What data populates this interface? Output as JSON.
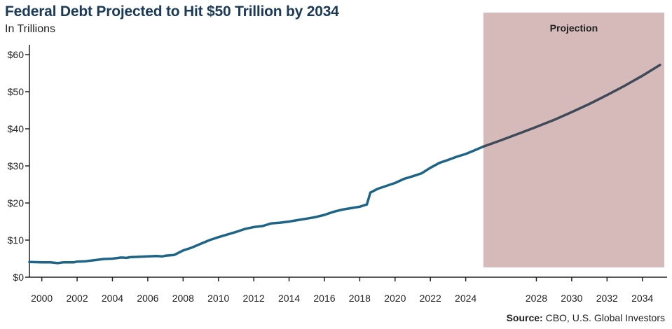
{
  "header": {
    "title": "Federal Debt Projected to Hit $50 Trillion by 2034",
    "subtitle": "In Trillions"
  },
  "footer": {
    "source_label": "Source:",
    "source_text": " CBO, U.S. Global Investors"
  },
  "colors": {
    "historical_line": "#1d6486",
    "projection_line": "#3f4a58",
    "projection_band": "#d6b9b9",
    "axis": "#222222",
    "title": "#1b3a57"
  },
  "chart_data": {
    "type": "line",
    "title": "Federal Debt Projected to Hit $50 Trillion by 2034",
    "subtitle": "In Trillions",
    "xlim": [
      1999.3,
      2035.4
    ],
    "ylim": [
      0,
      60
    ],
    "x_ticks": [
      2000,
      2002,
      2004,
      2006,
      2008,
      2010,
      2012,
      2014,
      2016,
      2018,
      2020,
      2022,
      2024,
      2028,
      2030,
      2032,
      2034
    ],
    "x_tick_labels": [
      "2000",
      "2002",
      "2004",
      "2006",
      "2008",
      "2010",
      "2012",
      "2014",
      "2016",
      "2018",
      "2020",
      "2022",
      "2024",
      "2028",
      "2030",
      "2032",
      "2034"
    ],
    "y_ticks": [
      0,
      10,
      20,
      30,
      40,
      50,
      60
    ],
    "y_tick_labels": [
      "$0",
      "$10",
      "$20",
      "$30",
      "$40",
      "$50",
      "$60"
    ],
    "grid": false,
    "projection_band": {
      "label": "Projection",
      "start": 2025.0,
      "end": 2035.4
    },
    "series": [
      {
        "segment": "historical",
        "points": [
          [
            1999.3,
            4.1
          ],
          [
            2000.0,
            4.0
          ],
          [
            2000.5,
            4.0
          ],
          [
            2000.9,
            3.8
          ],
          [
            2001.2,
            4.0
          ],
          [
            2001.8,
            4.0
          ],
          [
            2002.0,
            4.2
          ],
          [
            2002.5,
            4.3
          ],
          [
            2003.0,
            4.6
          ],
          [
            2003.5,
            4.9
          ],
          [
            2004.0,
            5.0
          ],
          [
            2004.5,
            5.3
          ],
          [
            2004.8,
            5.2
          ],
          [
            2005.0,
            5.4
          ],
          [
            2005.5,
            5.5
          ],
          [
            2006.0,
            5.6
          ],
          [
            2006.5,
            5.7
          ],
          [
            2006.8,
            5.6
          ],
          [
            2007.0,
            5.8
          ],
          [
            2007.5,
            6.0
          ],
          [
            2008.0,
            7.2
          ],
          [
            2008.5,
            8.0
          ],
          [
            2009.0,
            9.0
          ],
          [
            2009.5,
            10.0
          ],
          [
            2010.0,
            10.8
          ],
          [
            2010.5,
            11.5
          ],
          [
            2011.0,
            12.2
          ],
          [
            2011.5,
            13.0
          ],
          [
            2012.0,
            13.5
          ],
          [
            2012.5,
            13.8
          ],
          [
            2013.0,
            14.5
          ],
          [
            2013.5,
            14.7
          ],
          [
            2014.0,
            15.0
          ],
          [
            2014.5,
            15.4
          ],
          [
            2015.0,
            15.8
          ],
          [
            2015.5,
            16.2
          ],
          [
            2016.0,
            16.8
          ],
          [
            2016.5,
            17.6
          ],
          [
            2017.0,
            18.2
          ],
          [
            2017.5,
            18.6
          ],
          [
            2018.0,
            19.0
          ],
          [
            2018.4,
            19.6
          ],
          [
            2018.6,
            22.8
          ],
          [
            2019.0,
            23.8
          ],
          [
            2019.5,
            24.6
          ],
          [
            2020.0,
            25.4
          ],
          [
            2020.5,
            26.5
          ],
          [
            2021.0,
            27.2
          ],
          [
            2021.5,
            28.0
          ],
          [
            2022.0,
            29.5
          ],
          [
            2022.5,
            30.8
          ],
          [
            2023.0,
            31.6
          ],
          [
            2023.5,
            32.5
          ],
          [
            2024.0,
            33.2
          ],
          [
            2024.5,
            34.2
          ],
          [
            2025.0,
            35.2
          ]
        ]
      },
      {
        "segment": "projection",
        "points": [
          [
            2025.0,
            35.2
          ],
          [
            2026.0,
            36.9
          ],
          [
            2027.0,
            38.7
          ],
          [
            2028.0,
            40.5
          ],
          [
            2029.0,
            42.4
          ],
          [
            2030.0,
            44.5
          ],
          [
            2031.0,
            46.7
          ],
          [
            2032.0,
            49.1
          ],
          [
            2033.0,
            51.6
          ],
          [
            2034.0,
            54.3
          ],
          [
            2035.0,
            57.2
          ]
        ]
      }
    ]
  }
}
